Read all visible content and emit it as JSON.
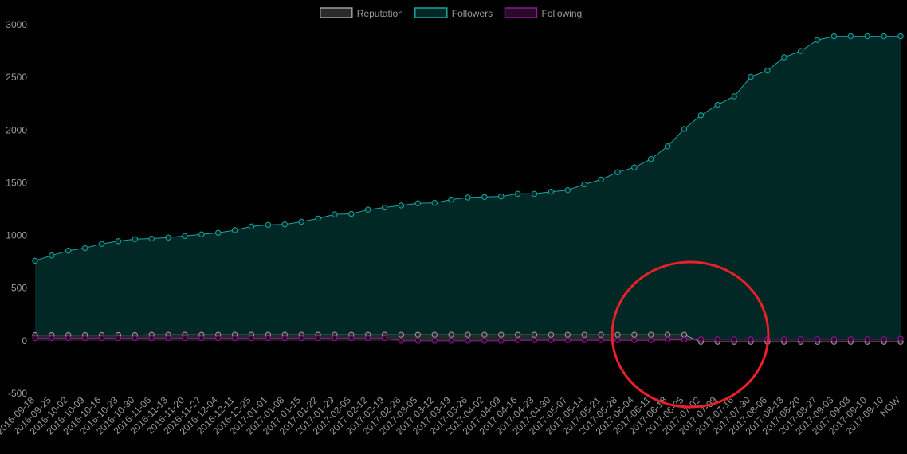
{
  "chart_data": {
    "type": "line",
    "legend_position": "top",
    "grid": false,
    "ylim": [
      -500,
      3000
    ],
    "yticks": [
      3000,
      2500,
      2000,
      1500,
      1000,
      500,
      0,
      -500
    ],
    "x": [
      "2016-09-18",
      "2016-09-25",
      "2016-10-02",
      "2016-10-09",
      "2016-10-16",
      "2016-10-23",
      "2016-10-30",
      "2016-11-06",
      "2016-11-13",
      "2016-11-20",
      "2016-11-27",
      "2016-12-04",
      "2016-12-11",
      "2016-12-25",
      "2017-01-01",
      "2017-01-08",
      "2017-01-15",
      "2017-01-22",
      "2017-01-29",
      "2017-02-05",
      "2017-02-12",
      "2017-02-19",
      "2017-02-26",
      "2017-03-05",
      "2017-03-12",
      "2017-03-19",
      "2017-03-26",
      "2017-04-02",
      "2017-04-09",
      "2017-04-16",
      "2017-04-23",
      "2017-04-30",
      "2017-05-07",
      "2017-05-14",
      "2017-05-21",
      "2017-05-28",
      "2017-06-04",
      "2017-06-11",
      "2017-06-18",
      "2017-06-25",
      "2017-07-02",
      "2017-07-09",
      "2017-07-16",
      "2017-07-30",
      "2017-08-06",
      "2017-08-13",
      "2017-08-20",
      "2017-08-27",
      "2017-09-03",
      "2017-09-03",
      "2017-09-10",
      "2017-09-10",
      "NOW"
    ],
    "series": [
      {
        "name": "Reputation",
        "color": "#9e9e9e",
        "fill": "#2a2a2a",
        "values": [
          55,
          55,
          55,
          55,
          55,
          55,
          55,
          58,
          58,
          58,
          58,
          58,
          58,
          58,
          58,
          58,
          58,
          58,
          58,
          58,
          58,
          58,
          58,
          58,
          58,
          58,
          58,
          58,
          58,
          58,
          58,
          58,
          58,
          58,
          58,
          58,
          58,
          58,
          58,
          58,
          -10,
          -10,
          -10,
          -10,
          -10,
          -10,
          -10,
          -10,
          -10,
          -10,
          -10,
          -10,
          -10
        ]
      },
      {
        "name": "Followers",
        "color": "#1aa3a3",
        "fill": "#022826",
        "values": [
          760,
          810,
          855,
          880,
          920,
          945,
          965,
          970,
          980,
          995,
          1010,
          1025,
          1050,
          1085,
          1100,
          1105,
          1130,
          1160,
          1200,
          1205,
          1245,
          1265,
          1285,
          1305,
          1310,
          1340,
          1360,
          1365,
          1370,
          1395,
          1395,
          1415,
          1430,
          1485,
          1530,
          1600,
          1645,
          1725,
          1845,
          2010,
          2140,
          2240,
          2320,
          2505,
          2565,
          2690,
          2750,
          2855,
          2890,
          2890,
          2890,
          2890,
          2890
        ]
      },
      {
        "name": "Following",
        "color": "#8b1a8b",
        "fill": "#2a0a2a",
        "values": [
          25,
          25,
          25,
          25,
          25,
          25,
          25,
          25,
          25,
          25,
          25,
          25,
          25,
          25,
          25,
          25,
          25,
          25,
          25,
          25,
          25,
          25,
          0,
          0,
          0,
          0,
          0,
          0,
          0,
          5,
          5,
          5,
          5,
          5,
          5,
          5,
          5,
          5,
          10,
          10,
          15,
          15,
          15,
          15,
          15,
          15,
          15,
          15,
          15,
          15,
          15,
          15,
          20
        ]
      }
    ]
  },
  "annotation": {
    "stroke": "#e8202a"
  }
}
